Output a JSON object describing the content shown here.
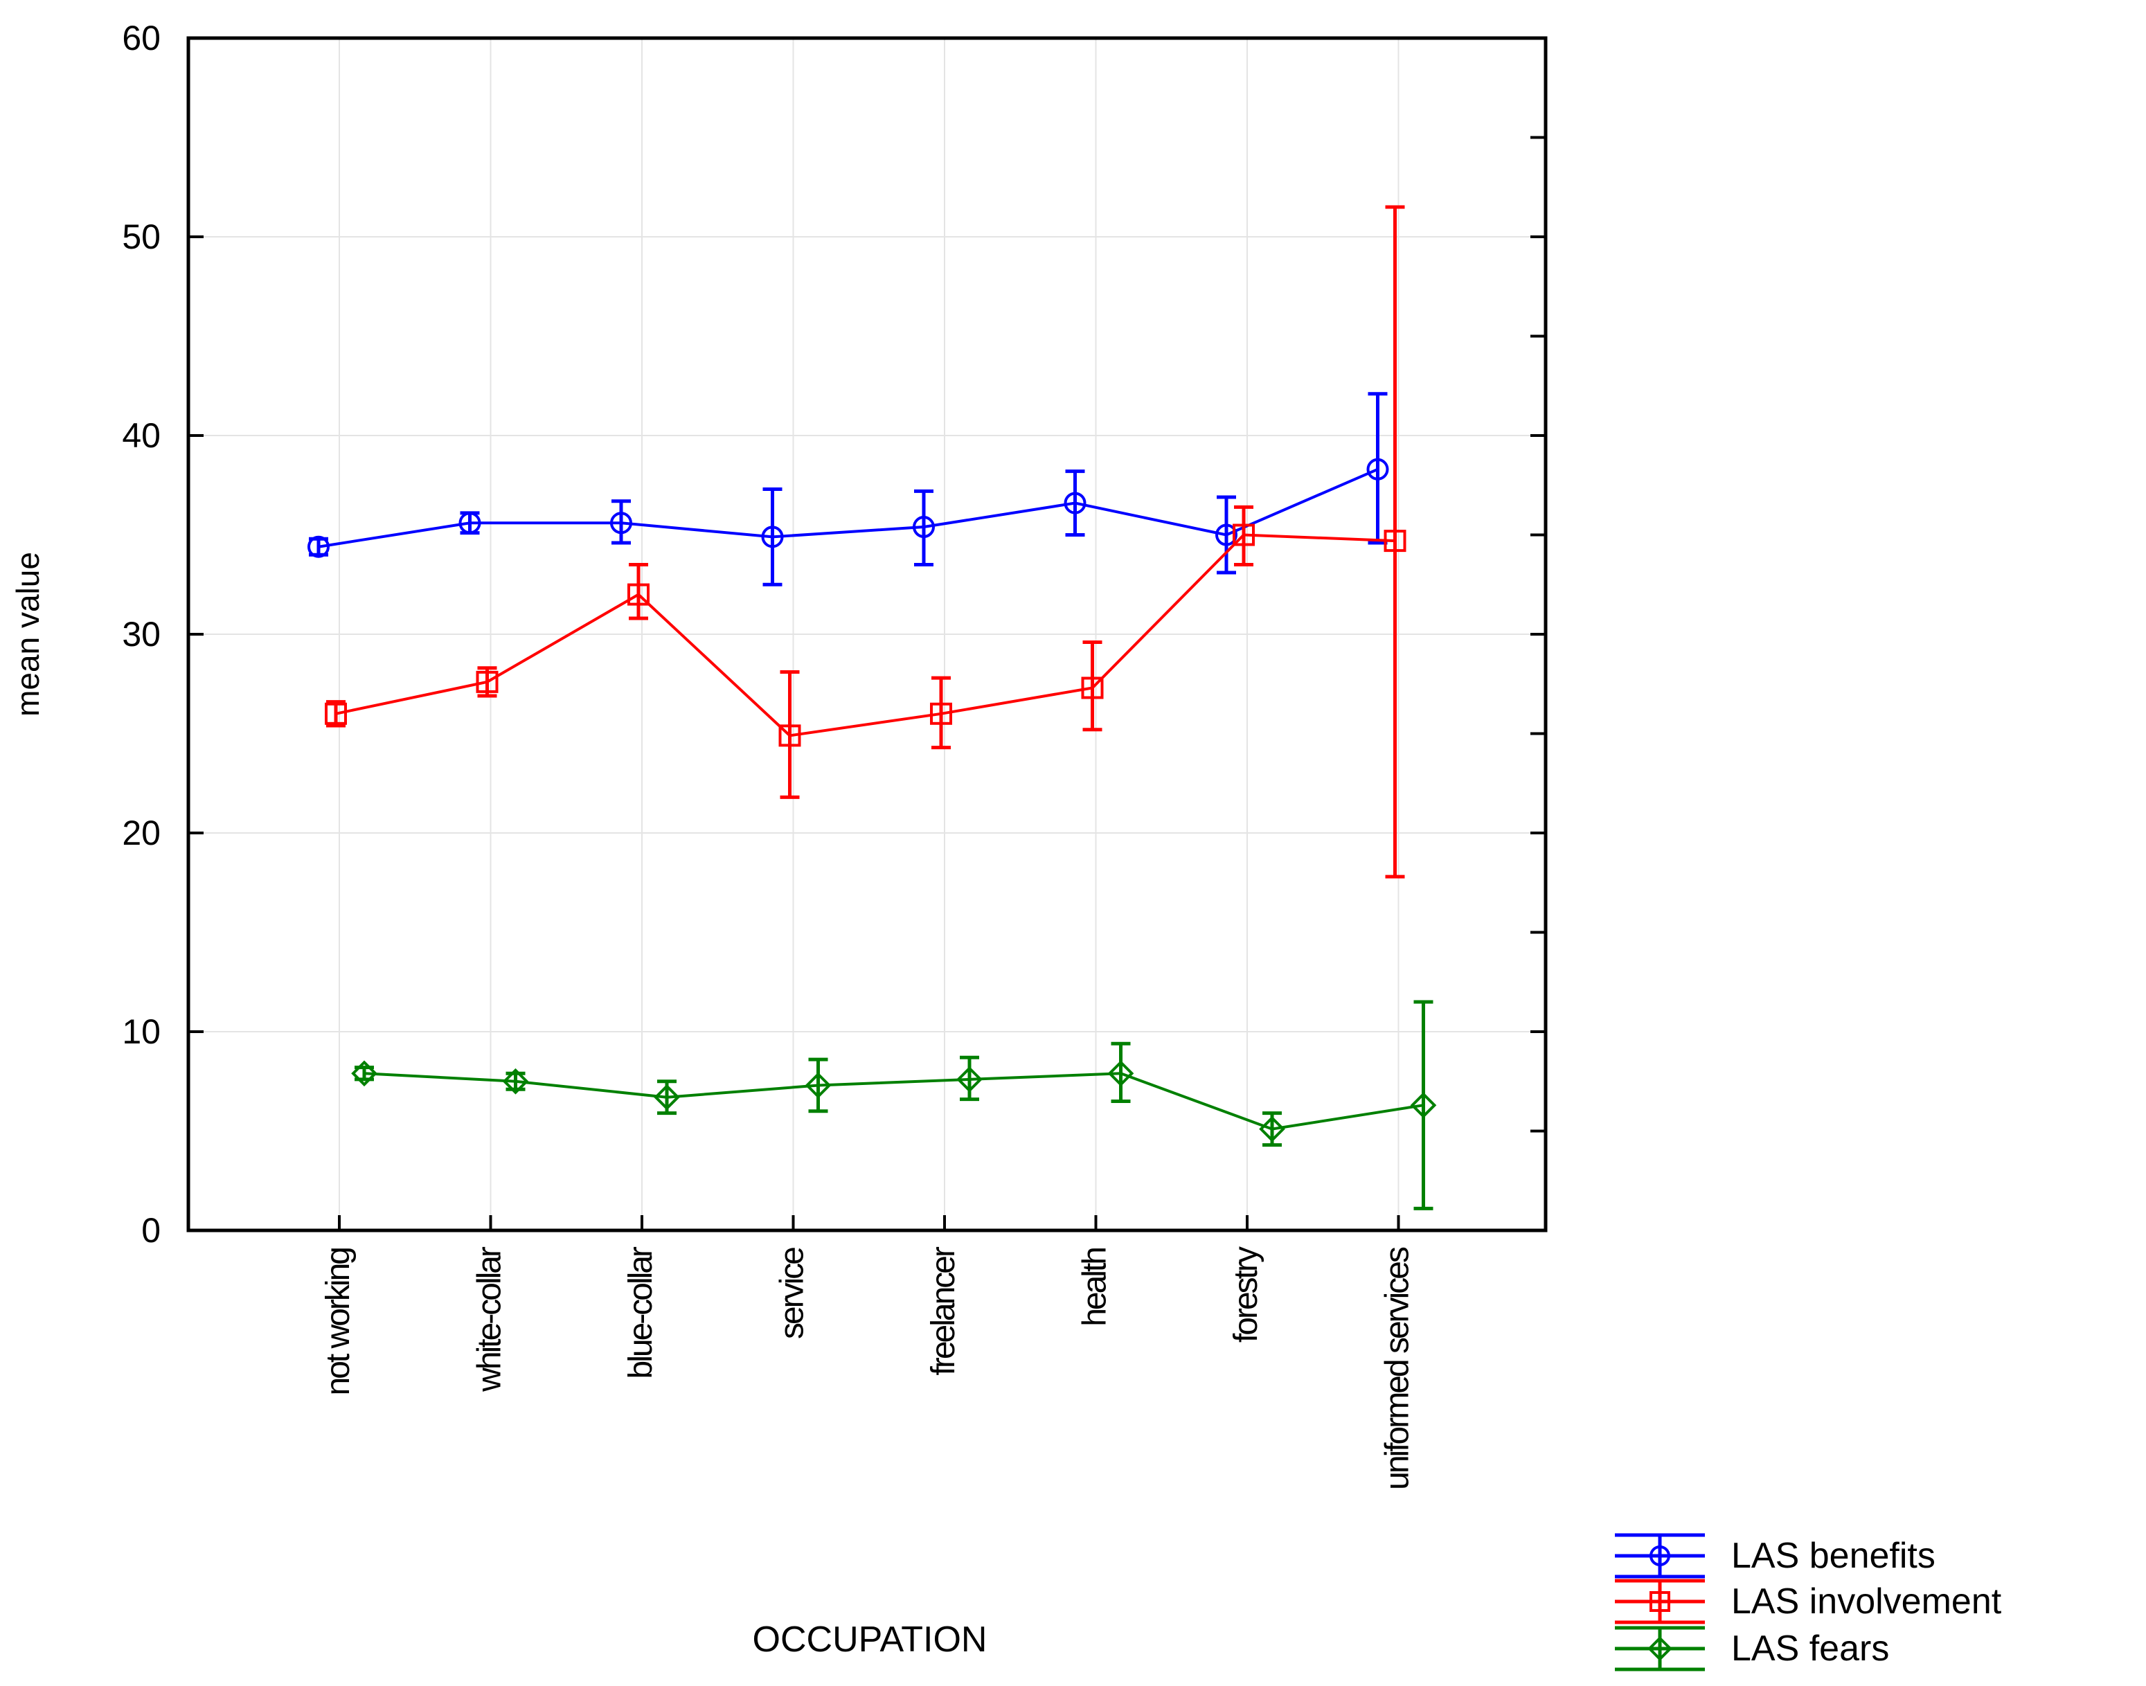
{
  "chart_data": {
    "type": "line",
    "title": "",
    "xlabel": "OCCUPATION",
    "ylabel": "mean value",
    "ylim": [
      0,
      60
    ],
    "yticks": [
      0,
      10,
      20,
      30,
      40,
      50,
      60
    ],
    "grid": true,
    "legend_position": "bottom-right",
    "categories": [
      "not working",
      "white-collar",
      "blue-collar",
      "service",
      "freelancer",
      "health",
      "forestry",
      "uniformed services"
    ],
    "series": [
      {
        "name": "LAS benefits",
        "color": "#0000ff",
        "marker": "circle",
        "values": [
          34.4,
          35.6,
          35.6,
          34.9,
          35.4,
          36.6,
          35.0,
          38.3
        ],
        "err_low": [
          34.0,
          35.1,
          34.6,
          32.5,
          33.5,
          35.0,
          33.1,
          34.6
        ],
        "err_high": [
          34.8,
          36.1,
          36.7,
          37.3,
          37.2,
          38.2,
          36.9,
          42.1
        ]
      },
      {
        "name": "LAS involvement",
        "color": "#ff0000",
        "marker": "square",
        "values": [
          26.0,
          27.6,
          32.0,
          24.9,
          26.0,
          27.3,
          35.0,
          34.7
        ],
        "err_low": [
          25.4,
          26.9,
          30.8,
          21.8,
          24.3,
          25.2,
          33.5,
          17.8
        ],
        "err_high": [
          26.6,
          28.3,
          33.5,
          28.1,
          27.8,
          29.6,
          36.4,
          51.5
        ]
      },
      {
        "name": "LAS fears",
        "color": "#008000",
        "marker": "diamond",
        "values": [
          7.9,
          7.5,
          6.7,
          7.3,
          7.6,
          7.9,
          5.1,
          6.3
        ],
        "err_low": [
          7.6,
          7.1,
          5.9,
          6.0,
          6.6,
          6.5,
          4.3,
          1.1
        ],
        "err_high": [
          8.2,
          7.9,
          7.5,
          8.6,
          8.7,
          9.4,
          5.9,
          11.5
        ]
      }
    ]
  }
}
